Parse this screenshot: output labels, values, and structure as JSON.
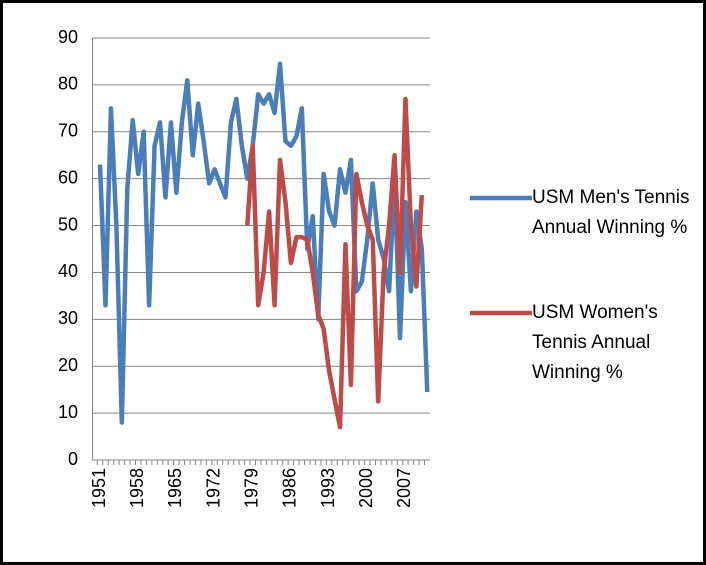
{
  "chart_data": {
    "type": "line",
    "categories": [
      "1951",
      null,
      null,
      null,
      null,
      null,
      null,
      "1958",
      null,
      null,
      null,
      null,
      null,
      null,
      "1965",
      null,
      null,
      null,
      null,
      null,
      null,
      "1972",
      null,
      null,
      null,
      null,
      null,
      null,
      "1979",
      null,
      null,
      null,
      null,
      null,
      null,
      "1986",
      null,
      null,
      null,
      null,
      null,
      null,
      "1993",
      null,
      null,
      null,
      null,
      null,
      null,
      "2000",
      null,
      null,
      null,
      null,
      null,
      null,
      "2007",
      null,
      null,
      null,
      null
    ],
    "series": [
      {
        "name": "USM Men's Tennis Annual Winning %",
        "color": "#4a7ebb",
        "values": [
          63,
          33,
          75,
          50,
          8,
          58,
          72.5,
          61,
          70,
          33,
          67,
          72,
          56,
          72,
          57,
          72,
          81,
          65,
          76,
          68,
          59,
          62,
          59,
          56,
          72,
          77,
          67,
          60,
          67,
          78,
          76,
          78,
          74,
          84.5,
          68,
          67,
          69,
          75,
          45,
          52,
          30,
          61,
          53,
          50,
          62,
          57,
          64,
          36,
          38,
          47,
          59,
          47,
          43,
          36,
          60,
          26,
          55,
          36,
          53,
          45,
          14.5
        ]
      },
      {
        "name": "USM Women's Tennis Annual Winning %",
        "color": "#be4b48",
        "values": [
          null,
          null,
          null,
          null,
          null,
          null,
          null,
          null,
          null,
          null,
          null,
          null,
          null,
          null,
          null,
          null,
          null,
          null,
          null,
          null,
          null,
          null,
          null,
          null,
          null,
          null,
          null,
          50,
          67,
          33,
          40,
          53,
          33,
          64,
          55,
          42,
          47.5,
          47.5,
          47,
          40,
          31,
          28,
          19,
          13,
          7,
          46,
          16,
          61,
          55,
          50,
          47,
          12.5,
          40,
          50,
          65,
          40,
          77,
          50,
          37,
          56.5,
          null
        ]
      }
    ],
    "ylim": [
      0,
      90
    ],
    "yticks": [
      0,
      10,
      20,
      30,
      40,
      50,
      60,
      70,
      80,
      90
    ],
    "grid": true,
    "legend": "right"
  }
}
